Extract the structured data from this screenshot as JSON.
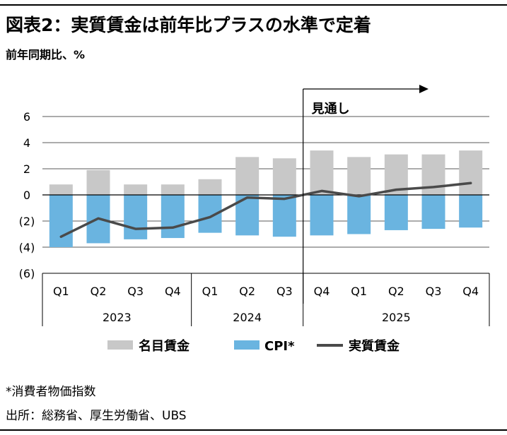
{
  "header": {
    "title": "図表2：実質賃金は前年比プラスの水準で定着",
    "unit": "前年同期比、%"
  },
  "chart_data": {
    "type": "bar",
    "categories": [
      "Q1",
      "Q2",
      "Q3",
      "Q4",
      "Q1",
      "Q2",
      "Q3",
      "Q4",
      "Q1",
      "Q2",
      "Q3",
      "Q4"
    ],
    "year_groups": [
      {
        "label": "2023",
        "count": 4
      },
      {
        "label": "2024",
        "count": 3
      },
      {
        "label": "2025",
        "count": 5
      }
    ],
    "y_tick_labels": [
      "6",
      "4",
      "2",
      "0",
      "(2)",
      "(4)",
      "(6)"
    ],
    "y_tick_values": [
      6,
      4,
      2,
      0,
      -2,
      -4,
      -6
    ],
    "ylim": [
      -6,
      6
    ],
    "grid": true,
    "legend_position": "bottom",
    "forecast_label": "見通し",
    "forecast_start_index": 7,
    "series": [
      {
        "name": "名目賃金",
        "type": "bar",
        "color": "#c8c8c8",
        "values": [
          0.8,
          1.9,
          0.8,
          0.8,
          1.2,
          2.9,
          2.8,
          3.4,
          2.9,
          3.1,
          3.1,
          3.4
        ]
      },
      {
        "name": "CPI*",
        "type": "bar",
        "color": "#6ab4e0",
        "values": [
          -4.0,
          -3.7,
          -3.4,
          -3.3,
          -2.9,
          -3.1,
          -3.2,
          -3.1,
          -3.0,
          -2.7,
          -2.6,
          -2.5
        ]
      },
      {
        "name": "実質賃金",
        "type": "line",
        "color": "#4a4a4a",
        "values": [
          -3.2,
          -1.8,
          -2.6,
          -2.5,
          -1.7,
          -0.2,
          -0.3,
          0.3,
          -0.1,
          0.4,
          0.6,
          0.9
        ]
      }
    ]
  },
  "footnotes": {
    "note": "*消費者物価指数",
    "source": "出所：総務省、厚生労働省、UBS"
  }
}
